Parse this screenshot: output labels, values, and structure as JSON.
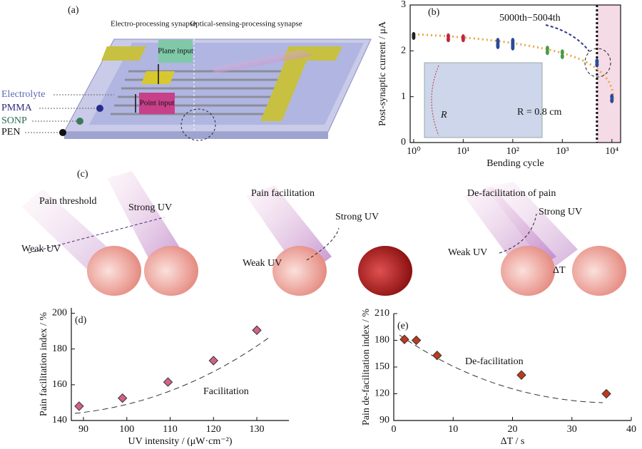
{
  "panel_a": {
    "label": "(a)",
    "left_title": "Electro-processing synapse",
    "right_title": "Optical-sensing-processing synapse",
    "plane_input": "Plane input",
    "point_input": "Point input",
    "layers": [
      "Electrolyte",
      "PMMA",
      "SONP",
      "PEN"
    ]
  },
  "panel_c": {
    "label": "(c)",
    "scenes": [
      {
        "title": "Pain threshold",
        "strong": "Strong UV",
        "weak": "Weak UV"
      },
      {
        "title": "Pain facilitation",
        "strong": "Strong UV",
        "weak": "Weak UV"
      },
      {
        "title": "De-facilitation of pain",
        "strong": "Strong UV",
        "weak": "Weak UV",
        "delta": "ΔT"
      }
    ]
  },
  "chart_data": [
    {
      "type": "scatter",
      "label": "(b)",
      "xlabel": "Bending cycle",
      "ylabel": "Post-synaptic current / μA",
      "xscale": "log",
      "xlim": [
        0.85,
        15000
      ],
      "ylim": [
        0,
        3
      ],
      "xticks": [
        {
          "value": 1,
          "label": "10⁰"
        },
        {
          "value": 10,
          "label": "10¹"
        },
        {
          "value": 100,
          "label": "10²"
        },
        {
          "value": 1000,
          "label": "10³"
        },
        {
          "value": 10000,
          "label": "10⁴"
        }
      ],
      "yticks": [
        0,
        1,
        2,
        3
      ],
      "marker": "circle",
      "reference_line": 5000,
      "annotation": "5000th−5004th",
      "inset_label": "R = 0.8 cm",
      "inset_radius_label": "R",
      "series": [
        {
          "color": "#222222",
          "x": [
            1,
            1
          ],
          "values": [
            2.35,
            2.3
          ]
        },
        {
          "color": "#c0283c",
          "x": [
            5,
            5,
            10,
            10
          ],
          "values": [
            2.32,
            2.25,
            2.3,
            2.25
          ]
        },
        {
          "color": "#2a4a9a",
          "x": [
            50,
            50,
            50,
            100,
            100,
            100,
            100
          ],
          "values": [
            2.22,
            2.15,
            2.1,
            2.22,
            2.17,
            2.12,
            2.07
          ]
        },
        {
          "color": "#4a9a4a",
          "x": [
            500,
            500,
            1000,
            1000
          ],
          "values": [
            2.05,
            1.97,
            1.97,
            1.88
          ]
        },
        {
          "color": "#2a4a9a",
          "x": [
            5000,
            5000,
            10000,
            10000
          ],
          "values": [
            1.77,
            1.7,
            1.0,
            0.92
          ]
        }
      ]
    },
    {
      "type": "scatter",
      "label": "(d)",
      "xlabel": "UV intensity / (μW·cm⁻²)",
      "ylabel": "Pain facilitation index / %",
      "xlim": [
        87.2,
        137.4
      ],
      "ylim": [
        140,
        203
      ],
      "xticks": [
        90,
        100,
        110,
        120,
        130
      ],
      "yticks": [
        140,
        160,
        180,
        200
      ],
      "marker": "diamond",
      "annotation": "Facilitation",
      "series": [
        {
          "color": "#d4608a",
          "x": [
            89,
            99,
            109.5,
            120,
            130
          ],
          "values": [
            148,
            152.5,
            161.5,
            173.5,
            190.5
          ]
        }
      ]
    },
    {
      "type": "scatter",
      "label": "(e)",
      "xlabel": "ΔT / s",
      "ylabel": "Pain de-facilitation index / %",
      "xlim": [
        0,
        40
      ],
      "ylim": [
        90,
        210
      ],
      "xticks": [
        0,
        10,
        20,
        30,
        40
      ],
      "yticks": [
        90,
        120,
        150,
        180,
        210
      ],
      "marker": "diamond",
      "annotation": "De-facilitation",
      "series": [
        {
          "color": "#c0391b",
          "x": [
            1.8,
            3.8,
            7.3,
            21.5,
            35.8
          ],
          "values": [
            181,
            180,
            163,
            141,
            120
          ]
        }
      ]
    }
  ]
}
